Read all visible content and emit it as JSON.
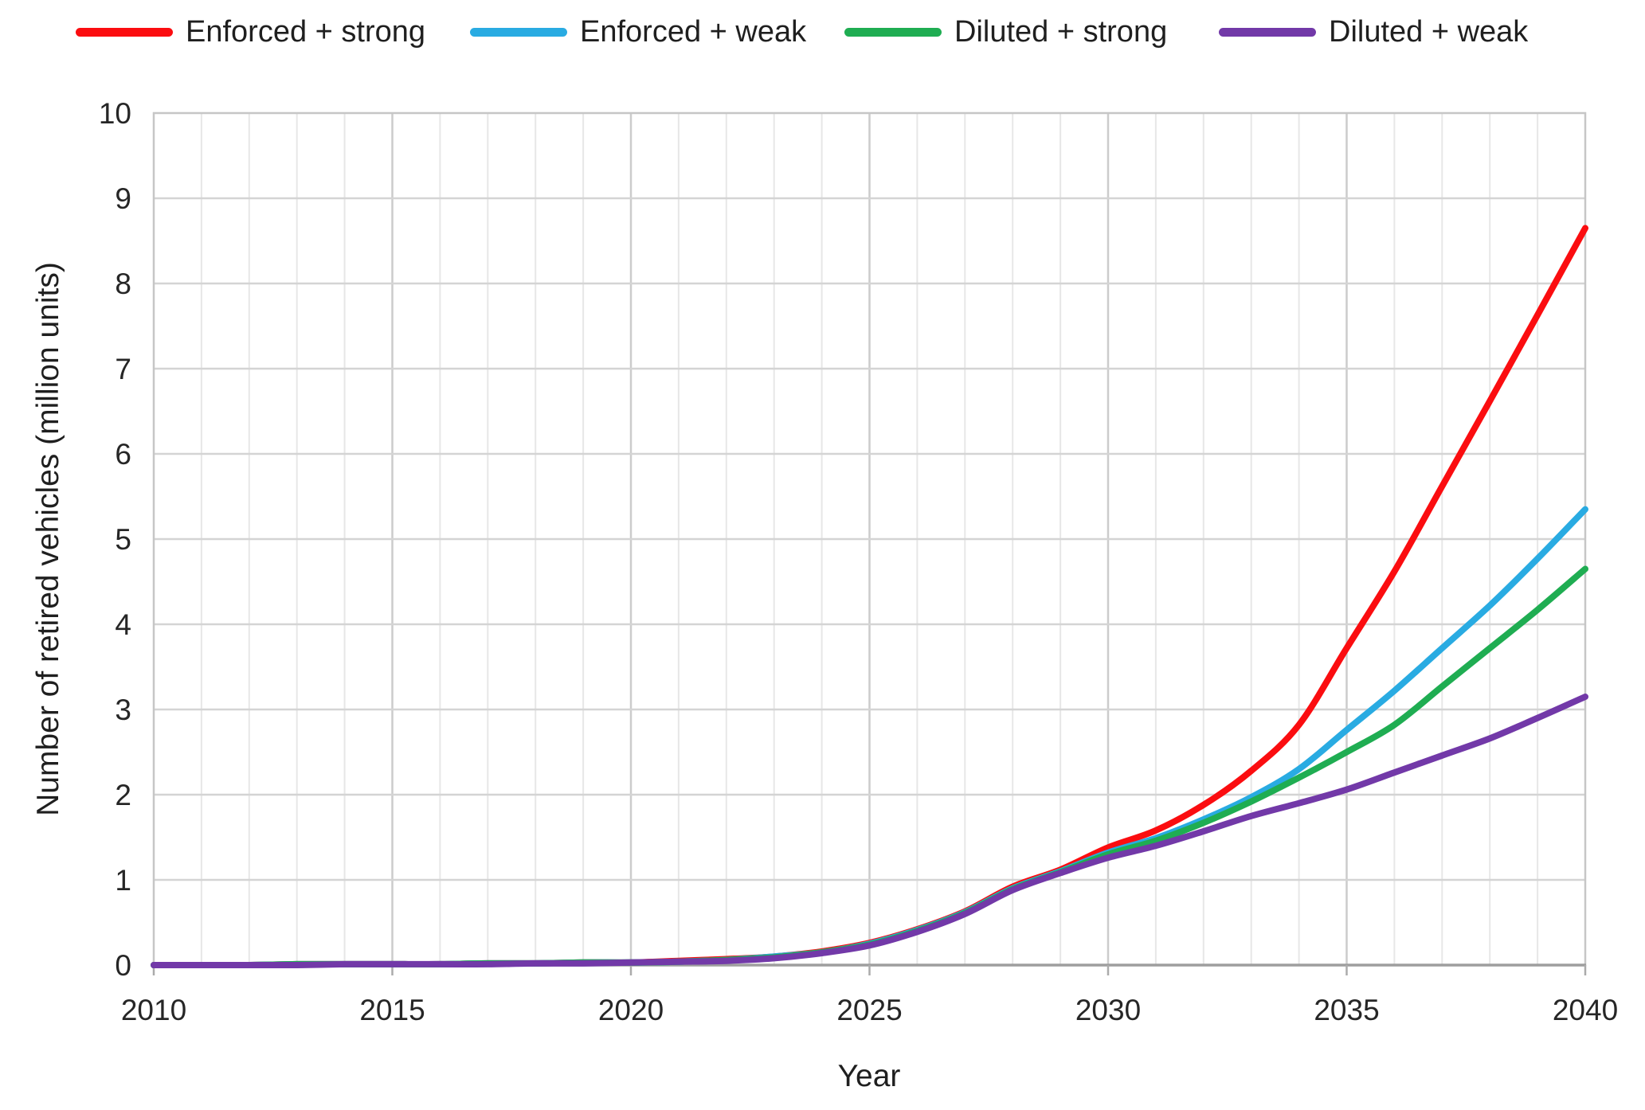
{
  "page": {
    "background": "#ffffff",
    "text_color": "#1f1f1f"
  },
  "chart_data": {
    "type": "line",
    "title": "",
    "xlabel": "Year",
    "ylabel": "Number of retired vehicles (million units)",
    "xlim": [
      2010,
      2040
    ],
    "ylim": [
      0,
      10
    ],
    "x_ticks": [
      2010,
      2015,
      2020,
      2025,
      2030,
      2035,
      2040
    ],
    "y_ticks": [
      0,
      1,
      2,
      3,
      4,
      5,
      6,
      7,
      8,
      9,
      10
    ],
    "grid": true,
    "legend_position": "top",
    "x": [
      2010,
      2011,
      2012,
      2013,
      2014,
      2015,
      2016,
      2017,
      2018,
      2019,
      2020,
      2021,
      2022,
      2023,
      2024,
      2025,
      2026,
      2027,
      2028,
      2029,
      2030,
      2031,
      2032,
      2033,
      2034,
      2035,
      2036,
      2037,
      2038,
      2039,
      2040
    ],
    "series": [
      {
        "name": "Enforced + strong",
        "color": "#FB0D10",
        "values": [
          0,
          0,
          0,
          0.01,
          0.01,
          0.01,
          0.01,
          0.02,
          0.02,
          0.03,
          0.03,
          0.05,
          0.07,
          0.1,
          0.16,
          0.26,
          0.42,
          0.63,
          0.92,
          1.12,
          1.38,
          1.58,
          1.88,
          2.28,
          2.82,
          3.72,
          4.62,
          5.62,
          6.62,
          7.63,
          8.65
        ]
      },
      {
        "name": "Enforced + weak",
        "color": "#29ABE2",
        "values": [
          0,
          0,
          0,
          0.01,
          0.01,
          0.01,
          0.01,
          0.02,
          0.02,
          0.03,
          0.03,
          0.04,
          0.06,
          0.1,
          0.15,
          0.25,
          0.41,
          0.62,
          0.9,
          1.1,
          1.32,
          1.49,
          1.71,
          1.97,
          2.3,
          2.76,
          3.22,
          3.72,
          4.22,
          4.77,
          5.35
        ]
      },
      {
        "name": "Diluted + strong",
        "color": "#1FAD52",
        "values": [
          0,
          0,
          0,
          0.01,
          0.01,
          0.01,
          0.01,
          0.02,
          0.02,
          0.03,
          0.03,
          0.04,
          0.06,
          0.09,
          0.15,
          0.24,
          0.4,
          0.61,
          0.89,
          1.09,
          1.3,
          1.46,
          1.67,
          1.92,
          2.2,
          2.5,
          2.82,
          3.27,
          3.72,
          4.17,
          4.65
        ]
      },
      {
        "name": "Diluted + weak",
        "color": "#7239A8",
        "values": [
          0,
          0,
          0,
          0,
          0.01,
          0.01,
          0.01,
          0.01,
          0.02,
          0.02,
          0.03,
          0.04,
          0.05,
          0.08,
          0.14,
          0.23,
          0.39,
          0.6,
          0.88,
          1.08,
          1.26,
          1.4,
          1.57,
          1.75,
          1.9,
          2.06,
          2.26,
          2.46,
          2.66,
          2.9,
          3.15
        ]
      }
    ],
    "style_colors": {
      "horizontal_grid": "#D4D4D4",
      "vertical_grid_minor": "#E7E7E7",
      "vertical_grid_major": "#CCCCCC",
      "plot_border": "#C6C6C6",
      "bottom_axis": "#9E9E9E",
      "tick_mark": "#ABABAB"
    }
  }
}
